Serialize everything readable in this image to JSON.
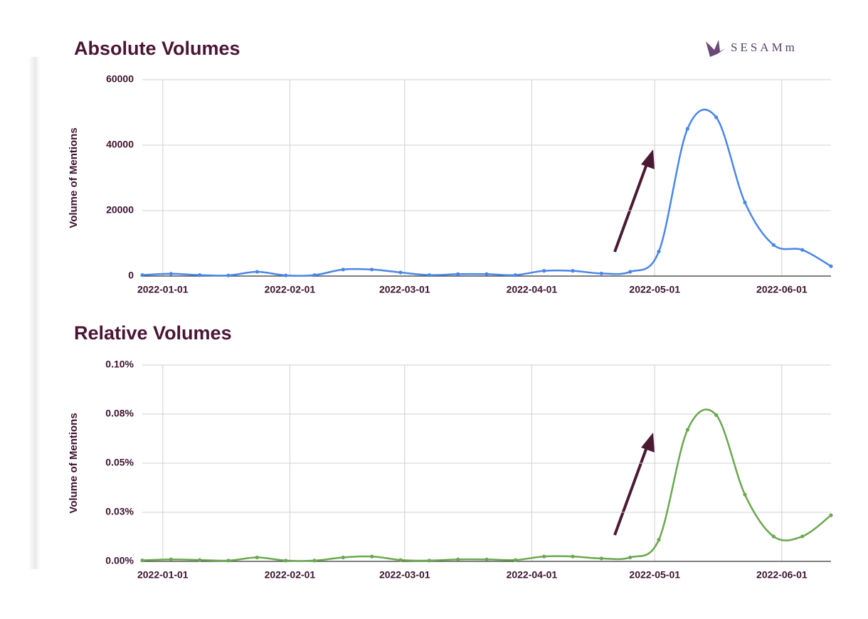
{
  "logo": "SESAMm",
  "chart_data": [
    {
      "type": "line",
      "title": "Absolute Volumes",
      "y_label": "Volume of Mentions",
      "x": [
        "2021-12-27",
        "2022-01-03",
        "2022-01-10",
        "2022-01-17",
        "2022-01-24",
        "2022-01-31",
        "2022-02-07",
        "2022-02-14",
        "2022-02-21",
        "2022-02-28",
        "2022-03-07",
        "2022-03-14",
        "2022-03-21",
        "2022-03-28",
        "2022-04-04",
        "2022-04-11",
        "2022-04-18",
        "2022-04-25",
        "2022-05-02",
        "2022-05-09",
        "2022-05-16",
        "2022-05-23",
        "2022-05-30",
        "2022-06-06",
        "2022-06-13"
      ],
      "values": [
        300,
        700,
        300,
        200,
        1300,
        200,
        300,
        2000,
        2000,
        1100,
        300,
        600,
        600,
        300,
        1600,
        1600,
        800,
        1300,
        7500,
        45000,
        48500,
        22500,
        9500,
        8000,
        3000
      ],
      "color": "#4a86e8",
      "xlim": [
        "2021-12-27",
        "2022-06-13"
      ],
      "xticks": [
        "2022-01-01",
        "2022-02-01",
        "2022-03-01",
        "2022-04-01",
        "2022-05-01",
        "2022-06-01"
      ],
      "ylim": [
        0,
        60000
      ],
      "yticks": [
        0,
        20000,
        40000,
        60000
      ],
      "grid": true
    },
    {
      "type": "line",
      "title": "Relative Volumes",
      "y_label": "Volume of Mentions",
      "x": [
        "2021-12-27",
        "2022-01-03",
        "2022-01-10",
        "2022-01-17",
        "2022-01-24",
        "2022-01-31",
        "2022-02-07",
        "2022-02-14",
        "2022-02-21",
        "2022-02-28",
        "2022-03-07",
        "2022-03-14",
        "2022-03-21",
        "2022-03-28",
        "2022-04-04",
        "2022-04-11",
        "2022-04-18",
        "2022-04-25",
        "2022-05-02",
        "2022-05-09",
        "2022-05-16",
        "2022-05-23",
        "2022-05-30",
        "2022-06-06",
        "2022-06-13"
      ],
      "values": [
        0.0005,
        0.001,
        0.0007,
        0.0004,
        0.002,
        0.0004,
        0.0004,
        0.002,
        0.0025,
        0.0007,
        0.0004,
        0.001,
        0.001,
        0.0007,
        0.0025,
        0.0025,
        0.0015,
        0.002,
        0.011,
        0.067,
        0.0745,
        0.034,
        0.0127,
        0.0127,
        0.0235
      ],
      "color": "#6aa84f",
      "xlim": [
        "2021-12-27",
        "2022-06-13"
      ],
      "xticks": [
        "2022-01-01",
        "2022-02-01",
        "2022-03-01",
        "2022-04-01",
        "2022-05-01",
        "2022-06-01"
      ],
      "ylim": [
        0,
        0.1
      ],
      "yticks": [
        {
          "value": 0,
          "label": "0.00%"
        },
        {
          "value": 0.025,
          "label": "0.03%"
        },
        {
          "value": 0.05,
          "label": "0.05%"
        },
        {
          "value": 0.075,
          "label": "0.08%"
        },
        {
          "value": 0.1,
          "label": "0.10%"
        }
      ],
      "grid": true
    }
  ]
}
